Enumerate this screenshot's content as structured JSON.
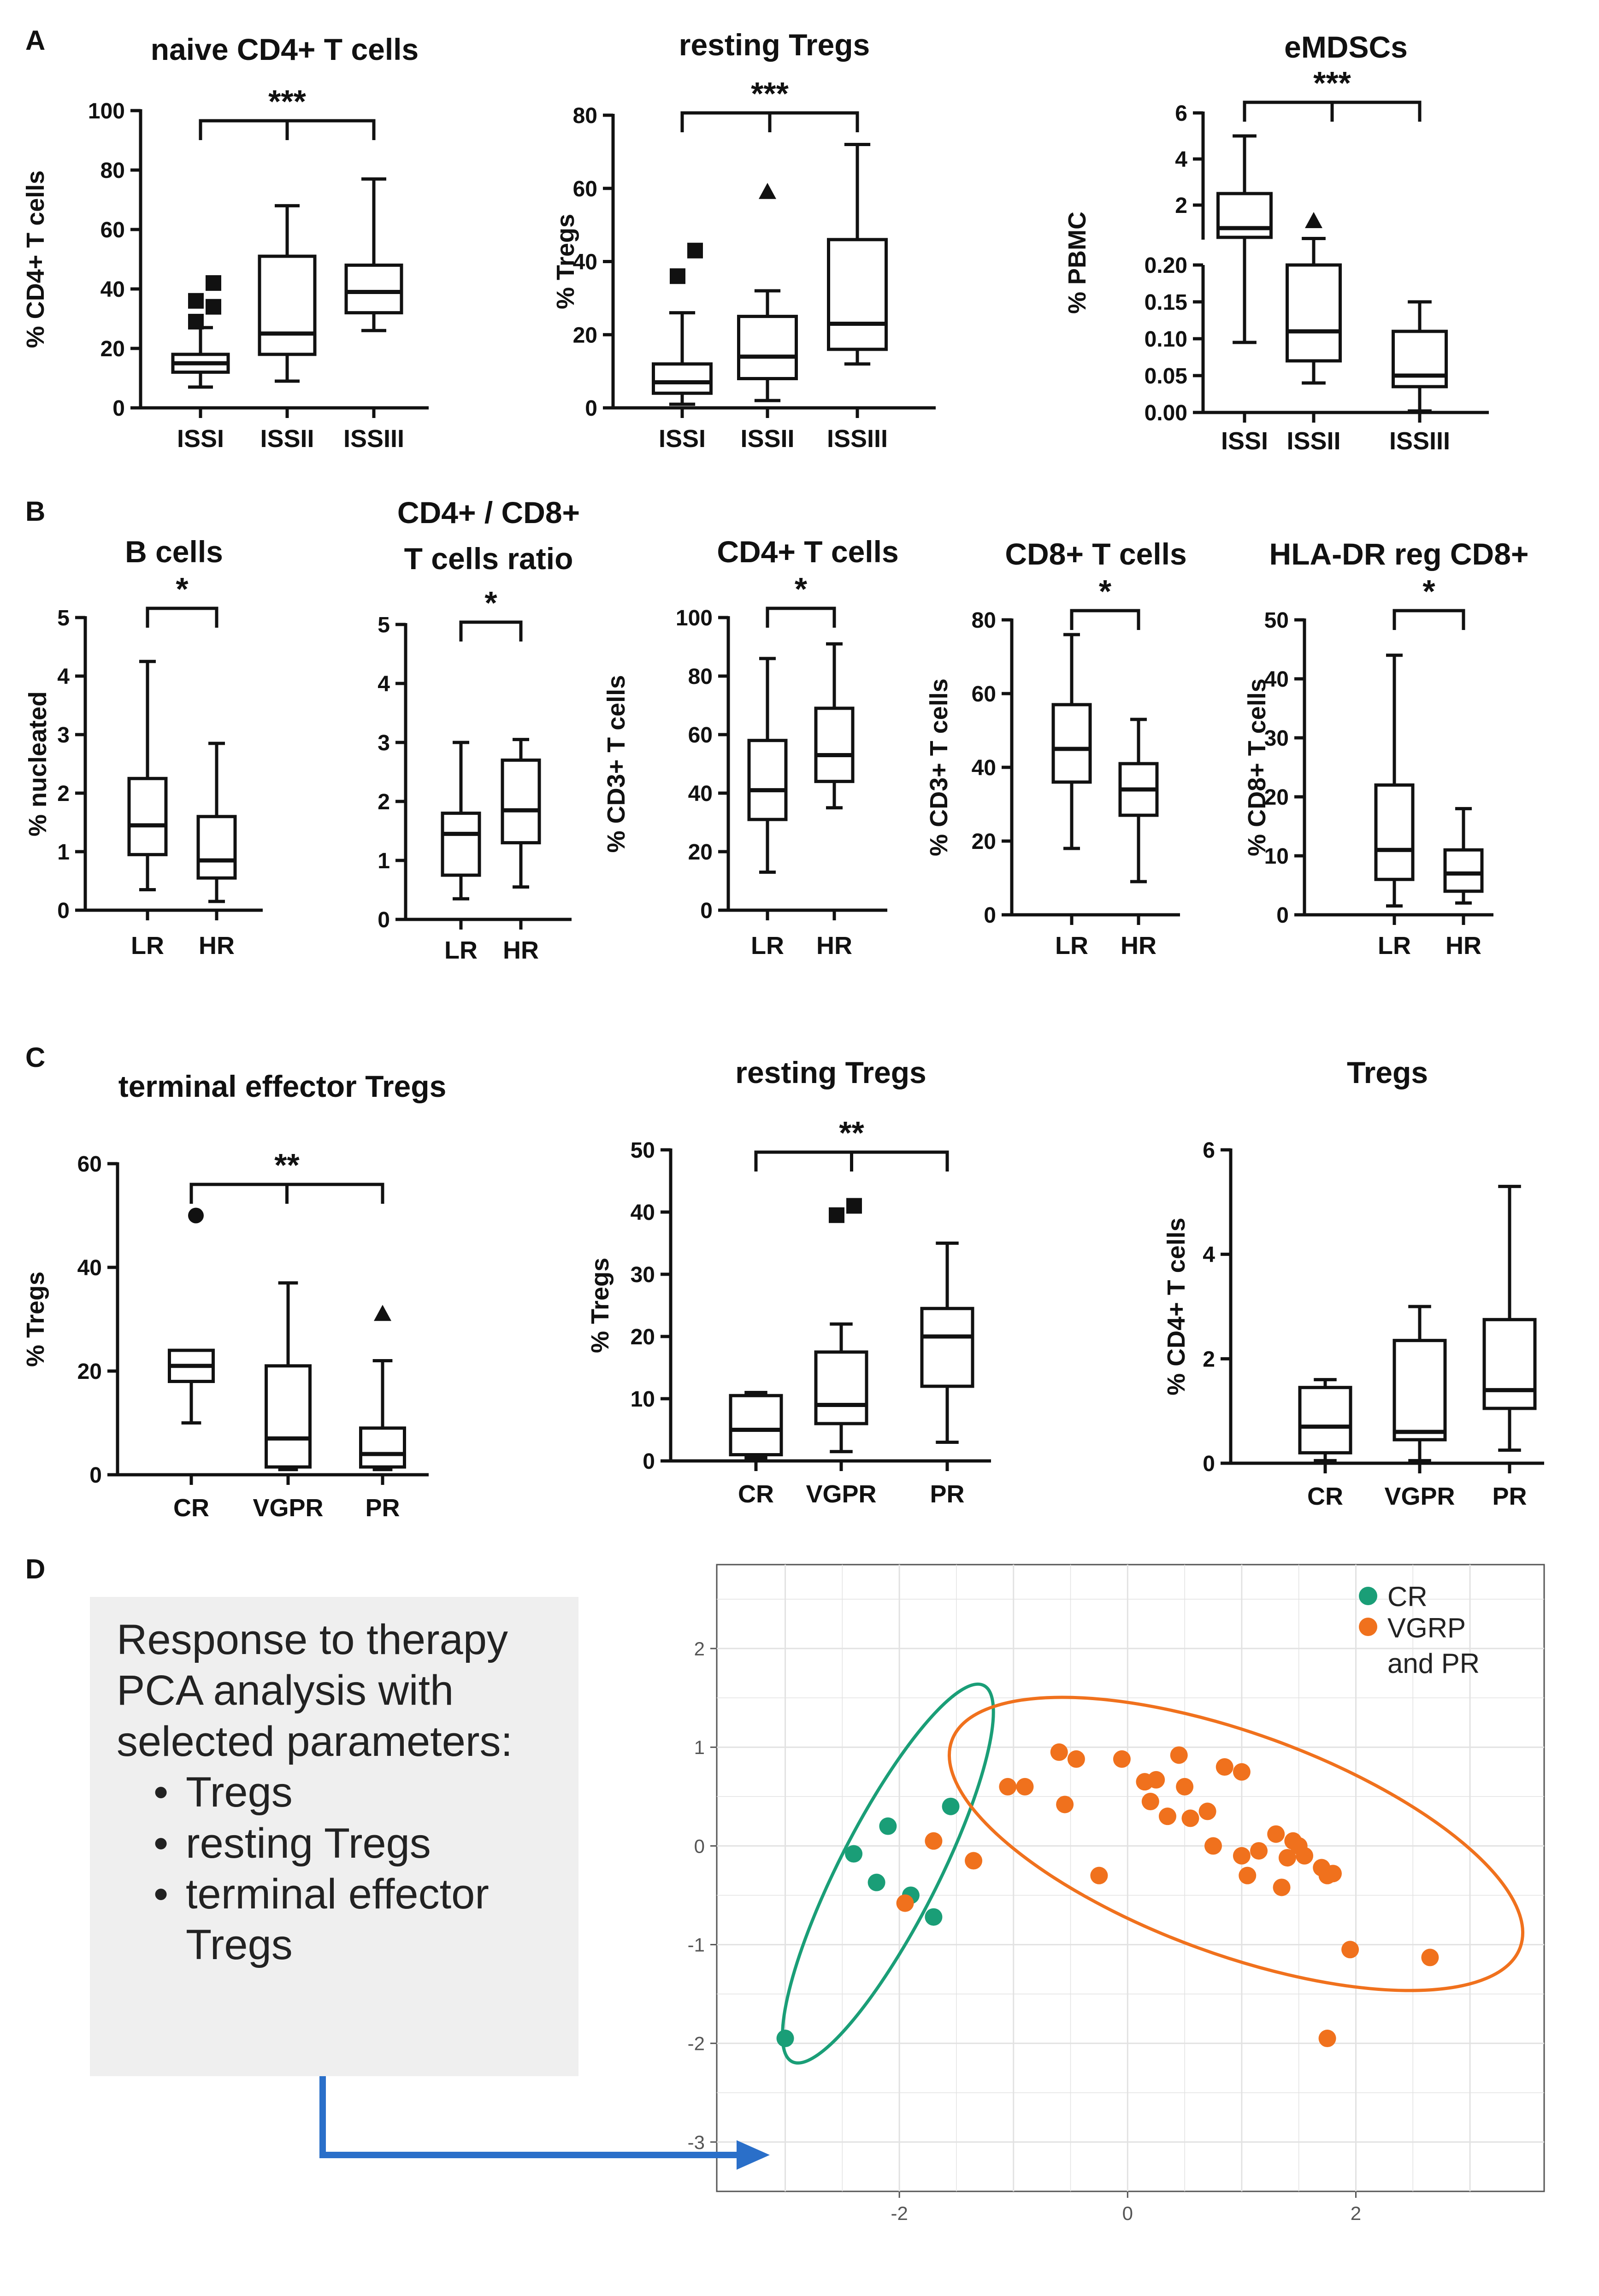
{
  "panels": {
    "A": "A",
    "B": "B",
    "C": "C",
    "D": "D"
  },
  "note": {
    "lines": [
      "Response to therapy",
      "PCA analysis with",
      "selected parameters:"
    ],
    "items": [
      "Tregs",
      "resting Tregs",
      "terminal effector Tregs"
    ]
  },
  "colors": {
    "cr": "#1a9e77",
    "vgpr_pr": "#f0711d",
    "arrow": "#2a6fc9",
    "grid": "#e2e2e2"
  },
  "chart_data": [
    {
      "id": "a1",
      "type": "box",
      "title": [
        "naive CD4+ T cells"
      ],
      "ylabel": "% CD4+ T cells",
      "ylim": [
        0,
        100
      ],
      "ticks": [
        0,
        20,
        40,
        60,
        80,
        100
      ],
      "significance": "***",
      "bracket": [
        0,
        2
      ],
      "categories": [
        "ISSI",
        "ISSII",
        "ISSIII"
      ],
      "boxes": [
        {
          "min": 7,
          "q1": 12,
          "median": 15,
          "q3": 18,
          "max": 27,
          "outliers": [
            {
              "v": 29,
              "m": "sq"
            },
            {
              "v": 34,
              "m": "sq"
            },
            {
              "v": 36,
              "m": "sq"
            },
            {
              "v": 42,
              "m": "sq"
            }
          ]
        },
        {
          "min": 9,
          "q1": 18,
          "median": 25,
          "q3": 51,
          "max": 68,
          "outliers": []
        },
        {
          "min": 26,
          "q1": 32,
          "median": 39,
          "q3": 48,
          "max": 77,
          "outliers": []
        }
      ]
    },
    {
      "id": "a2",
      "type": "box",
      "title": [
        "resting Tregs"
      ],
      "ylabel": "% Tregs",
      "ylim": [
        0,
        80
      ],
      "ticks": [
        0,
        20,
        40,
        60,
        80
      ],
      "significance": "***",
      "bracket": [
        0,
        2
      ],
      "categories": [
        "ISSI",
        "ISSII",
        "ISSIII"
      ],
      "boxes": [
        {
          "min": 1,
          "q1": 4,
          "median": 7,
          "q3": 12,
          "max": 26,
          "outliers": [
            {
              "v": 36,
              "m": "sq"
            },
            {
              "v": 43,
              "m": "sq"
            }
          ]
        },
        {
          "min": 2,
          "q1": 8,
          "median": 14,
          "q3": 25,
          "max": 32,
          "outliers": [
            {
              "v": 59,
              "m": "tri"
            }
          ]
        },
        {
          "min": 12,
          "q1": 16,
          "median": 23,
          "q3": 46,
          "max": 72,
          "outliers": []
        }
      ]
    },
    {
      "id": "a3",
      "type": "box-broken",
      "title": [
        "eMDSCs"
      ],
      "ylabel": "% PBMC",
      "upper": {
        "ylim": [
          0.5,
          6
        ],
        "ticks": [
          2,
          4,
          6
        ]
      },
      "lower": {
        "ylim": [
          0,
          0.2
        ],
        "ticks": [
          0.0,
          0.05,
          0.1,
          0.15,
          0.2
        ],
        "labels": [
          "0.00",
          "0.05",
          "0.10",
          "0.15",
          "0.20"
        ]
      },
      "significance": "***",
      "bracket": [
        0,
        2
      ],
      "categories": [
        "ISSI",
        "ISSII",
        "ISSIII"
      ],
      "boxes": [
        {
          "min": 0.095,
          "q1": 0.6,
          "median": 1.0,
          "q3": 2.5,
          "max": 5.0,
          "outliers": []
        },
        {
          "min": 0.04,
          "q1": 0.07,
          "median": 0.11,
          "q3": 0.2,
          "max": 0.55,
          "outliers": [
            {
              "v": 1.3,
              "m": "tri"
            }
          ]
        },
        {
          "min": 0.002,
          "q1": 0.035,
          "median": 0.05,
          "q3": 0.11,
          "max": 0.15,
          "outliers": []
        }
      ]
    },
    {
      "id": "b1",
      "type": "box",
      "title": [
        "B cells"
      ],
      "ylabel": "% nucleated",
      "ylim": [
        0,
        5
      ],
      "ticks": [
        0,
        1,
        2,
        3,
        4,
        5
      ],
      "significance": "*",
      "bracket": [
        0,
        1
      ],
      "categories": [
        "LR",
        "HR"
      ],
      "boxes": [
        {
          "min": 0.35,
          "q1": 0.95,
          "median": 1.45,
          "q3": 2.25,
          "max": 4.25,
          "outliers": []
        },
        {
          "min": 0.15,
          "q1": 0.55,
          "median": 0.85,
          "q3": 1.6,
          "max": 2.85,
          "outliers": []
        }
      ]
    },
    {
      "id": "b2",
      "type": "box",
      "title": [
        "CD4+ / CD8+",
        "T cells ratio"
      ],
      "ylabel": "",
      "ylim": [
        0,
        5
      ],
      "ticks": [
        0,
        1,
        2,
        3,
        4,
        5
      ],
      "significance": "*",
      "bracket": [
        0,
        1
      ],
      "categories": [
        "LR",
        "HR"
      ],
      "boxes": [
        {
          "min": 0.35,
          "q1": 0.75,
          "median": 1.45,
          "q3": 1.8,
          "max": 3.0,
          "outliers": []
        },
        {
          "min": 0.55,
          "q1": 1.3,
          "median": 1.85,
          "q3": 2.7,
          "max": 3.05,
          "outliers": []
        }
      ]
    },
    {
      "id": "b3",
      "type": "box",
      "title": [
        "CD4+ T cells"
      ],
      "ylabel": "% CD3+ T cells",
      "ylim": [
        0,
        100
      ],
      "ticks": [
        0,
        20,
        40,
        60,
        80,
        100
      ],
      "significance": "*",
      "bracket": [
        0,
        1
      ],
      "categories": [
        "LR",
        "HR"
      ],
      "boxes": [
        {
          "min": 13,
          "q1": 31,
          "median": 41,
          "q3": 58,
          "max": 86,
          "outliers": []
        },
        {
          "min": 35,
          "q1": 44,
          "median": 53,
          "q3": 69,
          "max": 91,
          "outliers": []
        }
      ]
    },
    {
      "id": "b4",
      "type": "box",
      "title": [
        "CD8+ T cells"
      ],
      "ylabel": "% CD3+ T cells",
      "ylim": [
        0,
        80
      ],
      "ticks": [
        0,
        20,
        40,
        60,
        80
      ],
      "significance": "*",
      "bracket": [
        0,
        1
      ],
      "categories": [
        "LR",
        "HR"
      ],
      "boxes": [
        {
          "min": 18,
          "q1": 36,
          "median": 45,
          "q3": 57,
          "max": 76,
          "outliers": []
        },
        {
          "min": 9,
          "q1": 27,
          "median": 34,
          "q3": 41,
          "max": 53,
          "outliers": []
        }
      ]
    },
    {
      "id": "b5",
      "type": "box",
      "title": [
        "HLA-DR reg CD8+"
      ],
      "ylabel": "% CD8+ T cells",
      "ylim": [
        0,
        50
      ],
      "ticks": [
        0,
        10,
        20,
        30,
        40,
        50
      ],
      "significance": "*",
      "bracket": [
        0,
        1
      ],
      "categories": [
        "LR",
        "HR"
      ],
      "boxes": [
        {
          "min": 1.5,
          "q1": 6,
          "median": 11,
          "q3": 22,
          "max": 44,
          "outliers": []
        },
        {
          "min": 2,
          "q1": 4,
          "median": 7,
          "q3": 11,
          "max": 18,
          "outliers": []
        }
      ]
    },
    {
      "id": "c1",
      "type": "box",
      "title": [
        "terminal effector Tregs"
      ],
      "ylabel": "% Tregs",
      "ylim": [
        0,
        60
      ],
      "ticks": [
        0,
        20,
        40,
        60
      ],
      "significance": "**",
      "bracket": [
        0,
        2
      ],
      "categories": [
        "CR",
        "VGPR",
        "PR"
      ],
      "boxes": [
        {
          "min": 10,
          "q1": 18,
          "median": 21,
          "q3": 24,
          "max": 24,
          "outliers": [
            {
              "v": 50,
              "m": "dot"
            }
          ]
        },
        {
          "min": 1,
          "q1": 1.5,
          "median": 7,
          "q3": 21,
          "max": 37,
          "outliers": []
        },
        {
          "min": 1,
          "q1": 1.5,
          "median": 4,
          "q3": 9,
          "max": 22,
          "outliers": [
            {
              "v": 31,
              "m": "tri"
            }
          ]
        }
      ]
    },
    {
      "id": "c2",
      "type": "box",
      "title": [
        "resting Tregs"
      ],
      "ylabel": "% Tregs",
      "ylim": [
        0,
        50
      ],
      "ticks": [
        0,
        10,
        20,
        30,
        40,
        50
      ],
      "significance": "**",
      "bracket": [
        0,
        2
      ],
      "categories": [
        "CR",
        "VGPR",
        "PR"
      ],
      "boxes": [
        {
          "min": 0.5,
          "q1": 1,
          "median": 5,
          "q3": 10.5,
          "max": 11,
          "outliers": []
        },
        {
          "min": 1.5,
          "q1": 6,
          "median": 9,
          "q3": 17.5,
          "max": 22,
          "outliers": [
            {
              "v": 39.5,
              "m": "sq"
            },
            {
              "v": 41,
              "m": "sq"
            }
          ]
        },
        {
          "min": 3,
          "q1": 12,
          "median": 20,
          "q3": 24.5,
          "max": 35,
          "outliers": []
        }
      ]
    },
    {
      "id": "c3",
      "type": "box",
      "title": [
        "Tregs"
      ],
      "ylabel": "% CD4+ T cells",
      "ylim": [
        0,
        6
      ],
      "ticks": [
        0,
        2,
        4,
        6
      ],
      "significance": "",
      "bracket": null,
      "categories": [
        "CR",
        "VGPR",
        "PR"
      ],
      "boxes": [
        {
          "min": 0.05,
          "q1": 0.2,
          "median": 0.7,
          "q3": 1.45,
          "max": 1.6,
          "outliers": []
        },
        {
          "min": 0.05,
          "q1": 0.45,
          "median": 0.6,
          "q3": 2.35,
          "max": 3.0,
          "outliers": []
        },
        {
          "min": 0.25,
          "q1": 1.05,
          "median": 1.4,
          "q3": 2.75,
          "max": 5.3,
          "outliers": []
        }
      ]
    },
    {
      "id": "d",
      "type": "scatter",
      "title": "",
      "xlim": [
        -3.6,
        3.65
      ],
      "ylim": [
        -3.5,
        2.85
      ],
      "xticks": [
        -2,
        0,
        2
      ],
      "yticks": [
        2,
        1,
        0,
        -1,
        -2,
        -3
      ],
      "legend": [
        {
          "label": "CR",
          "color": "#1a9e77"
        },
        {
          "label": "VGRP",
          "label2": "and PR",
          "color": "#f0711d"
        }
      ],
      "series": [
        {
          "name": "CR",
          "color": "#1a9e77",
          "x": [
            -3.0,
            -2.4,
            -2.2,
            -2.1,
            -1.9,
            -1.7,
            -1.55
          ],
          "y": [
            -1.95,
            -0.08,
            -0.37,
            0.2,
            -0.5,
            -0.72,
            0.4
          ]
        },
        {
          "name": "VGRP and PR",
          "color": "#f0711d",
          "x": [
            -1.95,
            -1.7,
            -1.35,
            -1.05,
            -0.9,
            -0.6,
            -0.55,
            -0.45,
            -0.25,
            -0.05,
            0.15,
            0.2,
            0.25,
            0.35,
            0.45,
            0.5,
            0.55,
            0.7,
            0.75,
            0.85,
            1.0,
            1.0,
            1.05,
            1.15,
            1.3,
            1.35,
            1.4,
            1.45,
            1.5,
            1.55,
            1.7,
            1.75,
            1.8,
            1.95,
            2.65,
            1.75
          ],
          "y": [
            -0.58,
            0.05,
            -0.15,
            0.6,
            0.6,
            0.95,
            0.42,
            0.88,
            -0.3,
            0.88,
            0.65,
            0.45,
            0.67,
            0.3,
            0.92,
            0.6,
            0.28,
            0.35,
            0.0,
            0.8,
            0.75,
            -0.1,
            -0.3,
            -0.05,
            0.12,
            -0.42,
            -0.12,
            0.05,
            0.0,
            -0.1,
            -0.22,
            -0.3,
            -0.28,
            -1.05,
            -1.13,
            -1.95
          ]
        }
      ],
      "ellipses": [
        {
          "color": "#1a9e77",
          "cx": -2.1,
          "cy": -0.28,
          "rx": 1.85,
          "ry": 0.5,
          "angle_deg": 63
        },
        {
          "color": "#f0711d",
          "cx": 0.95,
          "cy": 0.02,
          "rx": 2.65,
          "ry": 1.12,
          "angle_deg": -20
        }
      ]
    }
  ]
}
